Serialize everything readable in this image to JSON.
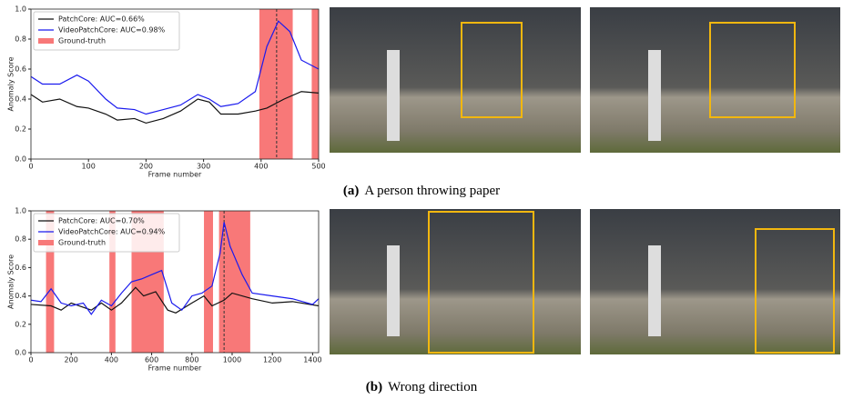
{
  "chart_data": [
    {
      "type": "line",
      "caption_label": "(a)",
      "caption": "A person throwing paper",
      "xlabel": "Frame number",
      "ylabel": "Anomaly Score",
      "xlim": [
        0,
        500
      ],
      "xticks": [
        0,
        100,
        200,
        300,
        400,
        500
      ],
      "ylim": [
        0,
        1
      ],
      "yticks": [
        {
          "value": 0,
          "label": "0.0"
        },
        {
          "value": 0.2,
          "label": "0.2"
        },
        {
          "value": 0.4,
          "label": "0.4"
        },
        {
          "value": 0.6,
          "label": "0.6"
        },
        {
          "value": 0.8,
          "label": "0.8"
        },
        {
          "value": 1,
          "label": "1.0"
        }
      ],
      "legend": "upper left",
      "marker_x": 427,
      "ground_truth": {
        "name": "Ground-truth",
        "color": "#f87878",
        "spans": [
          [
            397,
            455
          ],
          [
            488,
            500
          ]
        ]
      },
      "series": [
        {
          "name": "PatchCore: AUC=0.66%",
          "color": "#111111",
          "x": [
            0,
            20,
            50,
            80,
            100,
            130,
            150,
            180,
            200,
            230,
            260,
            290,
            310,
            330,
            360,
            390,
            410,
            440,
            470,
            500
          ],
          "values": [
            0.43,
            0.38,
            0.4,
            0.35,
            0.34,
            0.3,
            0.26,
            0.27,
            0.24,
            0.27,
            0.32,
            0.4,
            0.38,
            0.3,
            0.3,
            0.32,
            0.34,
            0.4,
            0.45,
            0.44
          ]
        },
        {
          "name": "VideoPatchCore: AUC=0.98%",
          "color": "#1a1aee",
          "x": [
            0,
            20,
            50,
            80,
            100,
            130,
            150,
            180,
            200,
            230,
            260,
            290,
            310,
            330,
            360,
            390,
            410,
            430,
            450,
            470,
            500
          ],
          "values": [
            0.55,
            0.5,
            0.5,
            0.56,
            0.52,
            0.4,
            0.34,
            0.33,
            0.3,
            0.33,
            0.36,
            0.43,
            0.4,
            0.35,
            0.37,
            0.45,
            0.75,
            0.92,
            0.85,
            0.66,
            0.6
          ]
        }
      ]
    },
    {
      "type": "line",
      "caption_label": "(b)",
      "caption": "Wrong direction",
      "xlabel": "Frame number",
      "ylabel": "Anomaly Score",
      "xlim": [
        0,
        1430
      ],
      "xticks": [
        0,
        200,
        400,
        600,
        800,
        1000,
        1200,
        1400
      ],
      "ylim": [
        0,
        1
      ],
      "yticks": [
        {
          "value": 0,
          "label": "0.0"
        },
        {
          "value": 0.2,
          "label": "0.2"
        },
        {
          "value": 0.4,
          "label": "0.4"
        },
        {
          "value": 0.6,
          "label": "0.6"
        },
        {
          "value": 0.8,
          "label": "0.8"
        },
        {
          "value": 1,
          "label": "1.0"
        }
      ],
      "legend": "upper left",
      "marker_x": 960,
      "ground_truth": {
        "name": "Ground-truth",
        "color": "#f87878",
        "spans": [
          [
            75,
            115
          ],
          [
            390,
            420
          ],
          [
            500,
            660
          ],
          [
            860,
            905
          ],
          [
            935,
            1090
          ]
        ]
      },
      "series": [
        {
          "name": "PatchCore: AUC=0.70%",
          "color": "#111111",
          "x": [
            0,
            100,
            150,
            200,
            300,
            350,
            400,
            450,
            520,
            560,
            620,
            680,
            720,
            800,
            860,
            900,
            960,
            1000,
            1100,
            1200,
            1300,
            1430
          ],
          "values": [
            0.34,
            0.33,
            0.3,
            0.35,
            0.3,
            0.35,
            0.3,
            0.35,
            0.46,
            0.4,
            0.43,
            0.3,
            0.28,
            0.35,
            0.4,
            0.33,
            0.37,
            0.42,
            0.38,
            0.35,
            0.36,
            0.33
          ]
        },
        {
          "name": "VideoPatchCore: AUC=0.94%",
          "color": "#1a1aee",
          "x": [
            0,
            50,
            100,
            150,
            200,
            260,
            300,
            350,
            400,
            450,
            500,
            550,
            600,
            650,
            700,
            750,
            800,
            850,
            900,
            940,
            960,
            990,
            1050,
            1100,
            1200,
            1300,
            1400,
            1430
          ],
          "values": [
            0.37,
            0.36,
            0.45,
            0.35,
            0.33,
            0.35,
            0.27,
            0.37,
            0.33,
            0.42,
            0.5,
            0.52,
            0.55,
            0.58,
            0.35,
            0.3,
            0.4,
            0.42,
            0.47,
            0.7,
            0.92,
            0.75,
            0.55,
            0.42,
            0.4,
            0.38,
            0.34,
            0.38
          ]
        }
      ]
    }
  ]
}
